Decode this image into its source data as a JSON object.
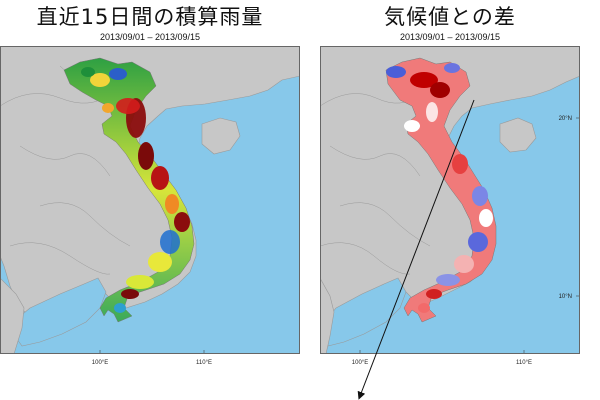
{
  "panels": [
    {
      "title": "直近15日間の積算雨量",
      "date_range": "2013/09/01 – 2013/09/15",
      "lon_labels": [
        "100°E",
        "110°E"
      ]
    },
    {
      "title": "気候値との差",
      "date_range": "2013/09/01 – 2013/09/15",
      "lon_labels": [
        "100°E",
        "110°E"
      ],
      "lat_labels": [
        "20°N",
        "10°N"
      ]
    }
  ],
  "colors": {
    "ocean": "#87c8ea",
    "land": "#c7c7c7",
    "border": "#9a9a9a",
    "frame": "#666666"
  }
}
